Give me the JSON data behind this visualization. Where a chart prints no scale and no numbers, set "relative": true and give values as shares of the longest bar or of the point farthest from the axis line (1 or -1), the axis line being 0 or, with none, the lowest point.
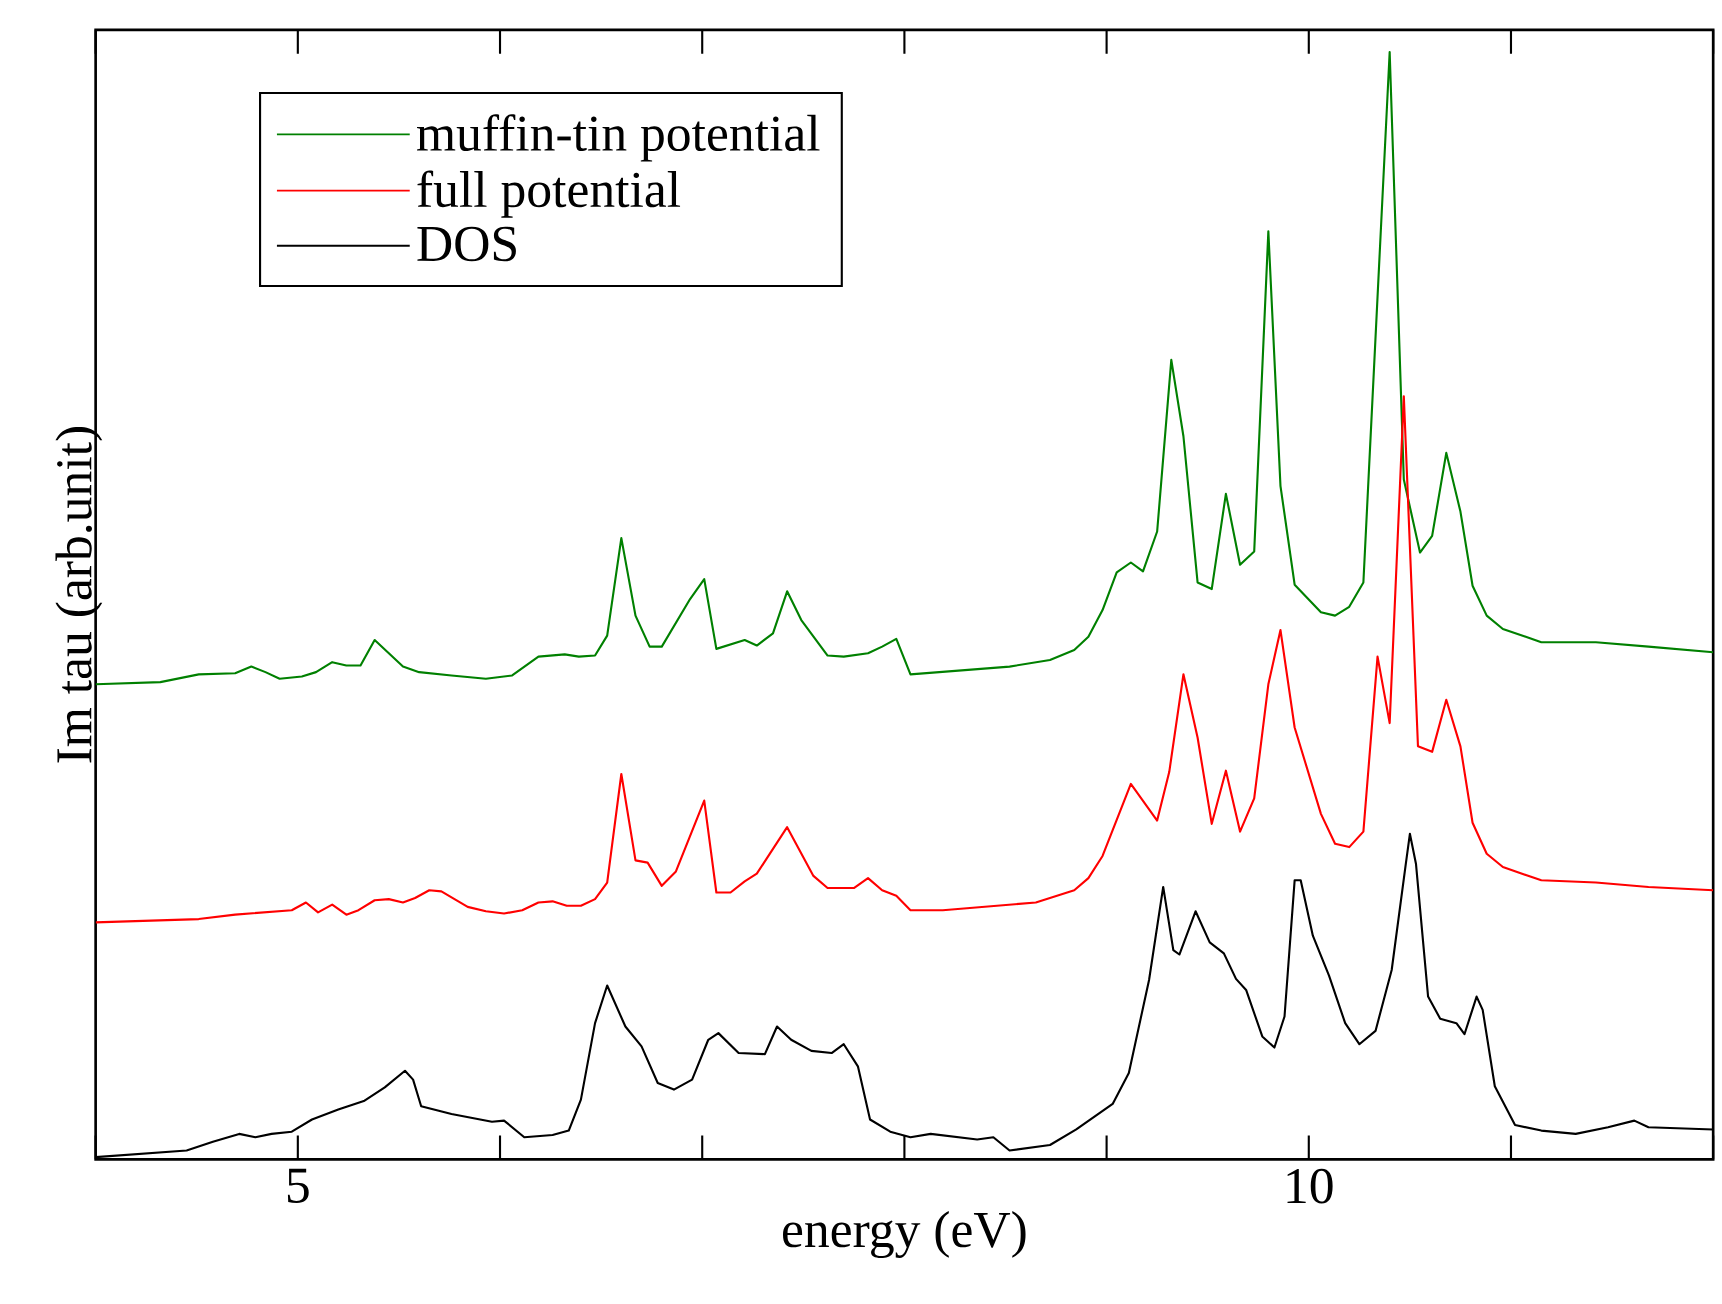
{
  "chart_data": {
    "type": "line",
    "relative": true,
    "xlabel": "energy (eV)",
    "ylabel": "Im tau (arb.unit)",
    "xlim": [
      4,
      12
    ],
    "xticks": [
      {
        "value": 4,
        "label": null
      },
      5,
      {
        "value": 6,
        "label": null
      },
      {
        "value": 7,
        "label": null
      },
      {
        "value": 8,
        "label": null
      },
      {
        "value": 9,
        "label": null
      },
      10,
      {
        "value": 11,
        "label": null
      },
      {
        "value": 12,
        "label": null
      }
    ],
    "legend": "top left",
    "series": [
      {
        "name": "muffin-tin potential",
        "color": "#008000",
        "x": [
          4.0,
          4.32,
          4.51,
          4.69,
          4.77,
          4.84,
          4.91,
          5.02,
          5.09,
          5.17,
          5.24,
          5.31,
          5.38,
          5.52,
          5.6,
          5.76,
          5.93,
          6.06,
          6.19,
          6.32,
          6.39,
          6.47,
          6.53,
          6.6,
          6.67,
          6.74,
          6.8,
          6.94,
          7.01,
          7.07,
          7.21,
          7.27,
          7.35,
          7.42,
          7.49,
          7.62,
          7.7,
          7.82,
          7.89,
          7.96,
          8.03,
          8.52,
          8.72,
          8.84,
          8.91,
          8.98,
          9.05,
          9.12,
          9.18,
          9.25,
          9.32,
          9.38,
          9.45,
          9.52,
          9.59,
          9.66,
          9.73,
          9.8,
          9.86,
          9.93,
          10.06,
          10.13,
          10.2,
          10.27,
          10.4,
          10.47,
          10.55,
          10.61,
          10.68,
          10.75,
          10.81,
          10.88,
          10.96,
          11.15,
          11.42,
          11.68,
          12.0
        ],
        "values": [
          0.429,
          0.431,
          0.438,
          0.439,
          0.445,
          0.44,
          0.434,
          0.436,
          0.44,
          0.449,
          0.446,
          0.446,
          0.469,
          0.445,
          0.44,
          0.437,
          0.434,
          0.437,
          0.454,
          0.456,
          0.454,
          0.455,
          0.473,
          0.561,
          0.491,
          0.463,
          0.463,
          0.506,
          0.524,
          0.461,
          0.469,
          0.464,
          0.475,
          0.513,
          0.487,
          0.455,
          0.454,
          0.457,
          0.463,
          0.47,
          0.438,
          0.445,
          0.451,
          0.46,
          0.472,
          0.496,
          0.53,
          0.539,
          0.531,
          0.567,
          0.722,
          0.653,
          0.521,
          0.515,
          0.601,
          0.537,
          0.549,
          0.838,
          0.608,
          0.519,
          0.494,
          0.491,
          0.499,
          0.521,
          1.0,
          0.614,
          0.548,
          0.563,
          0.638,
          0.585,
          0.518,
          0.491,
          0.479,
          0.467,
          0.467,
          0.463,
          0.458
        ]
      },
      {
        "name": "full potential",
        "color": "#ff0000",
        "x": [
          4.0,
          4.51,
          4.69,
          4.97,
          5.04,
          5.1,
          5.17,
          5.24,
          5.3,
          5.38,
          5.45,
          5.52,
          5.58,
          5.65,
          5.71,
          5.84,
          5.93,
          6.02,
          6.11,
          6.19,
          6.26,
          6.33,
          6.4,
          6.47,
          6.53,
          6.6,
          6.67,
          6.73,
          6.8,
          6.87,
          7.01,
          7.07,
          7.14,
          7.21,
          7.27,
          7.42,
          7.55,
          7.62,
          7.75,
          7.82,
          7.89,
          7.96,
          8.03,
          8.19,
          8.65,
          8.84,
          8.91,
          8.98,
          9.12,
          9.25,
          9.31,
          9.38,
          9.45,
          9.52,
          9.59,
          9.66,
          9.73,
          9.8,
          9.86,
          9.93,
          10.06,
          10.13,
          10.2,
          10.27,
          10.34,
          10.4,
          10.47,
          10.54,
          10.61,
          10.68,
          10.75,
          10.81,
          10.88,
          10.96,
          11.15,
          11.42,
          11.68,
          12.0
        ],
        "values": [
          0.214,
          0.217,
          0.221,
          0.225,
          0.232,
          0.223,
          0.23,
          0.221,
          0.225,
          0.234,
          0.235,
          0.232,
          0.236,
          0.243,
          0.242,
          0.228,
          0.224,
          0.222,
          0.225,
          0.232,
          0.233,
          0.229,
          0.229,
          0.235,
          0.25,
          0.348,
          0.27,
          0.268,
          0.247,
          0.26,
          0.324,
          0.241,
          0.241,
          0.251,
          0.258,
          0.3,
          0.256,
          0.245,
          0.245,
          0.254,
          0.243,
          0.238,
          0.225,
          0.225,
          0.232,
          0.243,
          0.254,
          0.274,
          0.339,
          0.306,
          0.35,
          0.438,
          0.381,
          0.303,
          0.351,
          0.296,
          0.326,
          0.429,
          0.478,
          0.39,
          0.312,
          0.285,
          0.282,
          0.296,
          0.454,
          0.394,
          0.689,
          0.373,
          0.368,
          0.415,
          0.373,
          0.304,
          0.276,
          0.264,
          0.252,
          0.25,
          0.246,
          0.243
        ]
      },
      {
        "name": "DOS",
        "color": "#000000",
        "x": [
          4.0,
          4.45,
          4.58,
          4.71,
          4.79,
          4.87,
          4.97,
          5.07,
          5.2,
          5.33,
          5.43,
          5.53,
          5.57,
          5.61,
          5.76,
          5.96,
          6.02,
          6.12,
          6.26,
          6.34,
          6.4,
          6.47,
          6.53,
          6.62,
          6.7,
          6.78,
          6.86,
          6.95,
          7.03,
          7.08,
          7.18,
          7.31,
          7.37,
          7.44,
          7.54,
          7.64,
          7.7,
          7.77,
          7.83,
          7.93,
          8.03,
          8.13,
          8.36,
          8.44,
          8.52,
          8.72,
          8.85,
          9.03,
          9.11,
          9.21,
          9.28,
          9.33,
          9.36,
          9.44,
          9.51,
          9.58,
          9.64,
          9.69,
          9.77,
          9.83,
          9.88,
          9.93,
          9.96,
          10.02,
          10.1,
          10.18,
          10.25,
          10.33,
          10.41,
          10.48,
          10.5,
          10.53,
          10.59,
          10.65,
          10.73,
          10.77,
          10.83,
          10.86,
          10.92,
          11.02,
          11.15,
          11.32,
          11.48,
          11.61,
          11.68,
          12.0
        ],
        "values": [
          0.002,
          0.008,
          0.016,
          0.023,
          0.02,
          0.023,
          0.025,
          0.036,
          0.045,
          0.053,
          0.065,
          0.08,
          0.072,
          0.048,
          0.041,
          0.034,
          0.035,
          0.02,
          0.022,
          0.026,
          0.054,
          0.123,
          0.157,
          0.12,
          0.102,
          0.069,
          0.063,
          0.072,
          0.108,
          0.114,
          0.096,
          0.095,
          0.12,
          0.108,
          0.098,
          0.096,
          0.104,
          0.084,
          0.036,
          0.025,
          0.02,
          0.023,
          0.018,
          0.02,
          0.008,
          0.013,
          0.027,
          0.05,
          0.078,
          0.162,
          0.246,
          0.189,
          0.185,
          0.224,
          0.196,
          0.186,
          0.163,
          0.153,
          0.111,
          0.101,
          0.129,
          0.252,
          0.252,
          0.202,
          0.166,
          0.123,
          0.104,
          0.116,
          0.171,
          0.267,
          0.294,
          0.267,
          0.147,
          0.127,
          0.123,
          0.113,
          0.147,
          0.135,
          0.066,
          0.031,
          0.026,
          0.023,
          0.029,
          0.035,
          0.029,
          0.027
        ]
      }
    ]
  }
}
